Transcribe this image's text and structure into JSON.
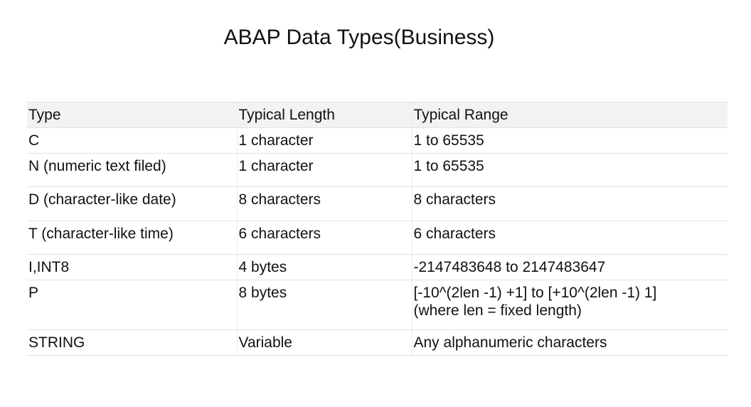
{
  "title": "ABAP Data Types(Business)",
  "table": {
    "headers": [
      "Type",
      "Typical Length",
      "Typical Range"
    ],
    "rows": [
      {
        "type": "C",
        "length": "1 character",
        "range": [
          "1 to 65535"
        ]
      },
      {
        "type": "N (numeric text filed)",
        "length": "1 character",
        "range": [
          "1 to 65535"
        ]
      },
      {
        "type": "D (character-like  date)",
        "length": "8 characters",
        "range": [
          "8 characters"
        ]
      },
      {
        "type": "T (character-like  time)",
        "length": "6 characters",
        "range": [
          "6 characters"
        ]
      },
      {
        "type": "I,INT8",
        "length": "4 bytes",
        "range": [
          "-2147483648 to 2147483647"
        ]
      },
      {
        "type": "P",
        "length": "8 bytes",
        "range": [
          "[-10^(2len -1) +1] to [+10^(2len -1) 1]",
          "(where len = fixed length)"
        ]
      },
      {
        "type": "STRING",
        "length": "Variable",
        "range": [
          "Any alphanumeric characters"
        ]
      }
    ]
  },
  "colors": {
    "header_bg": "#f2f2f2",
    "border": "#e3e3e3"
  }
}
